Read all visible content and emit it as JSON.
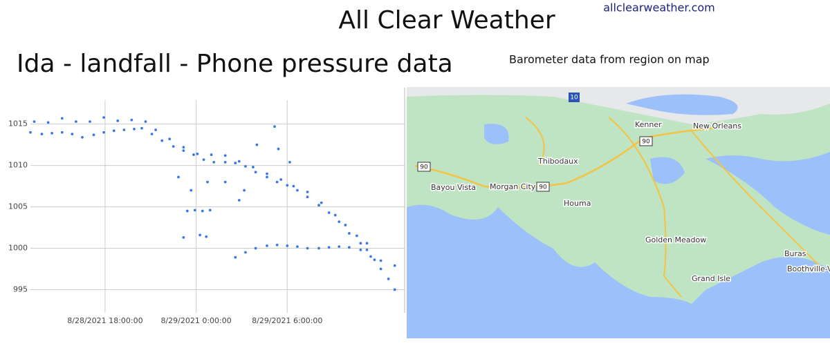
{
  "header": {
    "title": "All Clear Weather",
    "site": "allclearweather.com"
  },
  "chart_data": {
    "type": "scatter",
    "title": "Ida - landfall - Phone pressure data",
    "color": "#3b78e7",
    "grid": true,
    "xlim": [
      "8/28/2021 12:54:00",
      "8/29/2021 13:44:00"
    ],
    "xticks": [
      "8/28/2021 18:00:00",
      "8/29/2021 0:00:00",
      "8/29/2021 6:00:00"
    ],
    "ylim": [
      992.2,
      1019.4
    ],
    "yticks": [
      995,
      1000,
      1005,
      1010,
      1015
    ],
    "x": [
      "8/28/2021 13:20:00",
      "8/28/2021 14:15:00",
      "8/28/2021 15:10:00",
      "8/28/2021 16:05:00",
      "8/28/2021 17:00:00",
      "8/28/2021 17:55:00",
      "8/28/2021 18:50:00",
      "8/28/2021 19:45:00",
      "8/28/2021 20:40:00",
      "8/28/2021 13:05:00",
      "8/28/2021 13:50:00",
      "8/28/2021 14:30:00",
      "8/28/2021 15:10:00",
      "8/28/2021 15:50:00",
      "8/28/2021 16:30:00",
      "8/28/2021 17:15:00",
      "8/28/2021 17:55:00",
      "8/28/2021 18:35:00",
      "8/28/2021 19:15:00",
      "8/28/2021 19:55:00",
      "8/28/2021 20:25:00",
      "8/28/2021 21:05:00",
      "8/28/2021 21:45:00",
      "8/28/2021 22:30:00",
      "8/28/2021 23:10:00",
      "8/28/2021 23:50:00",
      "8/29/2021 0:30:00",
      "8/29/2021 1:10:00",
      "8/29/2021 1:55:00",
      "8/29/2021 2:35:00",
      "8/29/2021 3:15:00",
      "8/29/2021 3:55:00",
      "8/29/2021 4:40:00",
      "8/29/2021 5:20:00",
      "8/29/2021 6:00:00",
      "8/29/2021 6:40:00",
      "8/29/2021 7:20:00",
      "8/29/2021 8:05:00",
      "8/29/2021 8:45:00",
      "8/29/2021 9:25:00",
      "8/29/2021 10:05:00",
      "8/29/2021 10:50:00",
      "8/29/2021 11:15:00",
      "8/29/2021 11:45:00",
      "8/29/2021 12:10:00",
      "8/29/2021 12:40:00",
      "8/29/2021 13:05:00",
      "8/28/2021 21:20:00",
      "8/28/2021 22:15:00",
      "8/28/2021 23:10:00",
      "8/29/2021 0:05:00",
      "8/29/2021 1:00:00",
      "8/29/2021 1:55:00",
      "8/29/2021 2:50:00",
      "8/29/2021 3:45:00",
      "8/29/2021 4:40:00",
      "8/29/2021 5:35:00",
      "8/29/2021 6:25:00",
      "8/29/2021 7:20:00",
      "8/29/2021 8:15:00",
      "8/29/2021 9:10:00",
      "8/29/2021 9:50:00",
      "8/29/2021 10:35:00",
      "8/29/2021 11:15:00",
      "8/29/2021 2:35:00",
      "8/29/2021 3:15:00",
      "8/29/2021 3:55:00",
      "8/29/2021 4:40:00",
      "8/29/2021 5:20:00",
      "8/29/2021 6:00:00",
      "8/29/2021 6:40:00",
      "8/29/2021 7:20:00",
      "8/29/2021 8:05:00",
      "8/29/2021 8:45:00",
      "8/29/2021 9:25:00",
      "8/29/2021 10:05:00",
      "8/29/2021 10:50:00",
      "8/29/2021 11:30:00",
      "8/29/2021 12:10:00",
      "8/29/2021 13:05:00",
      "8/28/2021 22:50:00",
      "8/28/2021 23:10:00",
      "8/28/2021 23:25:00",
      "8/28/2021 23:40:00",
      "8/28/2021 23:55:00",
      "8/29/2021 0:15:00",
      "8/29/2021 0:25:00",
      "8/29/2021 0:40:00",
      "8/29/2021 0:55:00",
      "8/29/2021 0:45:00",
      "8/29/2021 1:55:00",
      "8/29/2021 2:50:00",
      "8/29/2021 3:10:00",
      "8/29/2021 4:00:00",
      "8/29/2021 5:10:00",
      "8/29/2021 5:25:00",
      "8/29/2021 6:10:00"
    ],
    "values": [
      1015.3,
      1015.2,
      1015.7,
      1015.3,
      1015.3,
      1015.8,
      1015.4,
      1015.5,
      1015.3,
      1014.0,
      1013.8,
      1013.9,
      1014.0,
      1013.8,
      1013.4,
      1013.7,
      1014.0,
      1014.2,
      1014.3,
      1014.4,
      1014.5,
      1013.8,
      1013.0,
      1012.3,
      1011.8,
      1011.3,
      1010.7,
      1010.4,
      1010.4,
      1010.3,
      1009.9,
      1009.2,
      1008.6,
      1008.0,
      1007.6,
      1007.0,
      1006.2,
      1005.2,
      1004.3,
      1003.2,
      1001.8,
      1000.6,
      999.8,
      998.6,
      997.5,
      996.3,
      995.0,
      1014.3,
      1013.2,
      1012.2,
      1011.4,
      1011.3,
      1011.2,
      1010.5,
      1009.8,
      1009.0,
      1008.3,
      1007.5,
      1006.8,
      1005.5,
      1004.0,
      1002.8,
      1001.5,
      1000.6,
      998.9,
      999.5,
      1000.0,
      1000.3,
      1000.4,
      1000.3,
      1000.2,
      1000.0,
      1000.0,
      1000.1,
      1000.2,
      1000.1,
      999.8,
      999.0,
      998.5,
      997.9,
      1008.6,
      1001.3,
      1004.5,
      1007.0,
      1004.6,
      1001.6,
      1004.5,
      1001.4,
      1004.6,
      1008.0,
      1008.0,
      1005.8,
      1007.0,
      1012.5,
      1014.7,
      1012.0,
      1010.4
    ]
  },
  "map": {
    "caption": "Barometer data from region on map",
    "labels": [
      "New Orleans",
      "Kenner",
      "Thibodaux",
      "Morgan City",
      "Bayou Vista",
      "Houma",
      "Golden Meadow",
      "Grand Isle",
      "Buras",
      "Boothville-Ve"
    ],
    "shields": [
      "10",
      "90",
      "90",
      "90"
    ]
  }
}
